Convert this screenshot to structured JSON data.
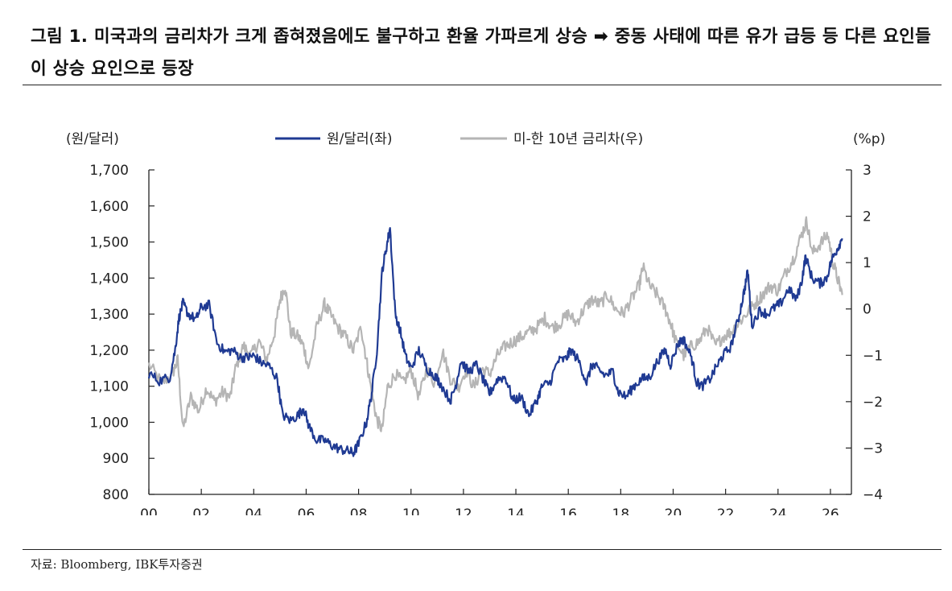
{
  "title": "그림 1.  미국과의 금리차가 크게 좁혀졌음에도 불구하고 환율 가파르게 상승 ➡ 중동 사태에 따른 유가 급등 등 다른 요인들이 상승 요인으로 등장",
  "source": "자료: Bloomberg, IBK투자증권",
  "colors": {
    "krw_usd": "#1f3a93",
    "spread": "#b5b5b5",
    "axis": "#222222"
  },
  "chart_data": {
    "type": "line",
    "left_unit": "(원/달러)",
    "right_unit": "(%p)",
    "x_ticks": [
      "00",
      "02",
      "04",
      "06",
      "08",
      "10",
      "12",
      "14",
      "16",
      "18",
      "20",
      "22",
      "24",
      "26"
    ],
    "x_range": [
      2000,
      2026.8
    ],
    "left_axis": {
      "range": [
        800,
        1700
      ],
      "ticks": [
        "800",
        "900",
        "1,000",
        "1,100",
        "1,200",
        "1,300",
        "1,400",
        "1,500",
        "1,600",
        "1,700"
      ]
    },
    "right_axis": {
      "range": [
        -4,
        3
      ],
      "ticks": [
        "-4",
        "-3",
        "-2",
        "-1",
        "0",
        "1",
        "2",
        "3"
      ]
    },
    "series": [
      {
        "name": "원/달러(좌)",
        "axis": "left",
        "points": [
          [
            2000.0,
            1135
          ],
          [
            2000.4,
            1115
          ],
          [
            2000.8,
            1125
          ],
          [
            2001.0,
            1200
          ],
          [
            2001.15,
            1290
          ],
          [
            2001.3,
            1330
          ],
          [
            2001.5,
            1300
          ],
          [
            2001.8,
            1285
          ],
          [
            2002.0,
            1320
          ],
          [
            2002.3,
            1325
          ],
          [
            2002.6,
            1220
          ],
          [
            2002.9,
            1195
          ],
          [
            2003.2,
            1200
          ],
          [
            2003.5,
            1180
          ],
          [
            2003.8,
            1180
          ],
          [
            2004.0,
            1185
          ],
          [
            2004.3,
            1165
          ],
          [
            2004.6,
            1155
          ],
          [
            2004.9,
            1120
          ],
          [
            2005.1,
            1020
          ],
          [
            2005.4,
            1005
          ],
          [
            2005.7,
            1020
          ],
          [
            2005.9,
            1040
          ],
          [
            2006.1,
            990
          ],
          [
            2006.4,
            950
          ],
          [
            2006.7,
            950
          ],
          [
            2007.0,
            935
          ],
          [
            2007.3,
            925
          ],
          [
            2007.6,
            920
          ],
          [
            2007.8,
            915
          ],
          [
            2008.0,
            940
          ],
          [
            2008.3,
            1000
          ],
          [
            2008.5,
            1080
          ],
          [
            2008.7,
            1200
          ],
          [
            2008.9,
            1420
          ],
          [
            2009.05,
            1480
          ],
          [
            2009.2,
            1540
          ],
          [
            2009.4,
            1300
          ],
          [
            2009.6,
            1250
          ],
          [
            2009.8,
            1180
          ],
          [
            2010.0,
            1150
          ],
          [
            2010.3,
            1200
          ],
          [
            2010.6,
            1150
          ],
          [
            2010.9,
            1130
          ],
          [
            2011.1,
            1110
          ],
          [
            2011.5,
            1060
          ],
          [
            2011.7,
            1100
          ],
          [
            2011.9,
            1170
          ],
          [
            2012.2,
            1140
          ],
          [
            2012.5,
            1160
          ],
          [
            2012.8,
            1110
          ],
          [
            2013.0,
            1080
          ],
          [
            2013.3,
            1120
          ],
          [
            2013.6,
            1125
          ],
          [
            2013.9,
            1060
          ],
          [
            2014.2,
            1070
          ],
          [
            2014.5,
            1020
          ],
          [
            2014.8,
            1060
          ],
          [
            2015.0,
            1100
          ],
          [
            2015.3,
            1110
          ],
          [
            2015.6,
            1170
          ],
          [
            2015.9,
            1175
          ],
          [
            2016.1,
            1200
          ],
          [
            2016.4,
            1170
          ],
          [
            2016.7,
            1110
          ],
          [
            2016.9,
            1160
          ],
          [
            2017.1,
            1150
          ],
          [
            2017.4,
            1130
          ],
          [
            2017.7,
            1140
          ],
          [
            2017.9,
            1085
          ],
          [
            2018.2,
            1070
          ],
          [
            2018.5,
            1100
          ],
          [
            2018.8,
            1120
          ],
          [
            2019.1,
            1125
          ],
          [
            2019.4,
            1170
          ],
          [
            2019.7,
            1200
          ],
          [
            2019.9,
            1160
          ],
          [
            2020.2,
            1220
          ],
          [
            2020.4,
            1230
          ],
          [
            2020.7,
            1180
          ],
          [
            2020.9,
            1110
          ],
          [
            2021.1,
            1100
          ],
          [
            2021.4,
            1120
          ],
          [
            2021.7,
            1160
          ],
          [
            2021.9,
            1185
          ],
          [
            2022.2,
            1210
          ],
          [
            2022.5,
            1290
          ],
          [
            2022.7,
            1360
          ],
          [
            2022.85,
            1420
          ],
          [
            2023.0,
            1270
          ],
          [
            2023.3,
            1310
          ],
          [
            2023.6,
            1300
          ],
          [
            2023.9,
            1320
          ],
          [
            2024.1,
            1330
          ],
          [
            2024.4,
            1370
          ],
          [
            2024.7,
            1340
          ],
          [
            2024.9,
            1390
          ],
          [
            2025.05,
            1460
          ],
          [
            2025.3,
            1400
          ],
          [
            2025.6,
            1385
          ],
          [
            2025.85,
            1400
          ],
          [
            2026.05,
            1450
          ],
          [
            2026.25,
            1480
          ],
          [
            2026.45,
            1510
          ]
        ]
      },
      {
        "name": "미-한 10년 금리차(우)",
        "axis": "right",
        "points": [
          [
            2000.0,
            -1.2
          ],
          [
            2000.5,
            -1.6
          ],
          [
            2000.9,
            -1.4
          ],
          [
            2001.1,
            -1.1
          ],
          [
            2001.3,
            -2.6
          ],
          [
            2001.6,
            -1.9
          ],
          [
            2001.9,
            -2.2
          ],
          [
            2002.2,
            -1.7
          ],
          [
            2002.5,
            -2.0
          ],
          [
            2002.8,
            -1.8
          ],
          [
            2003.1,
            -1.9
          ],
          [
            2003.3,
            -1.3
          ],
          [
            2003.6,
            -0.8
          ],
          [
            2003.9,
            -1.0
          ],
          [
            2004.2,
            -0.7
          ],
          [
            2004.5,
            -1.1
          ],
          [
            2004.8,
            -0.5
          ],
          [
            2005.0,
            0.2
          ],
          [
            2005.2,
            0.5
          ],
          [
            2005.4,
            -0.5
          ],
          [
            2005.7,
            -0.6
          ],
          [
            2005.9,
            -0.8
          ],
          [
            2006.1,
            -1.3
          ],
          [
            2006.4,
            -0.4
          ],
          [
            2006.7,
            0.1
          ],
          [
            2006.9,
            -0.1
          ],
          [
            2007.2,
            -0.4
          ],
          [
            2007.5,
            -0.6
          ],
          [
            2007.8,
            -0.9
          ],
          [
            2008.1,
            -0.4
          ],
          [
            2008.3,
            -1.1
          ],
          [
            2008.5,
            -1.8
          ],
          [
            2008.7,
            -2.4
          ],
          [
            2008.9,
            -2.6
          ],
          [
            2009.1,
            -1.7
          ],
          [
            2009.4,
            -1.4
          ],
          [
            2009.7,
            -1.6
          ],
          [
            2010.0,
            -1.3
          ],
          [
            2010.3,
            -1.9
          ],
          [
            2010.6,
            -1.3
          ],
          [
            2010.9,
            -1.6
          ],
          [
            2011.2,
            -0.9
          ],
          [
            2011.5,
            -1.5
          ],
          [
            2011.8,
            -1.7
          ],
          [
            2012.1,
            -1.3
          ],
          [
            2012.4,
            -1.7
          ],
          [
            2012.7,
            -1.3
          ],
          [
            2013.0,
            -1.4
          ],
          [
            2013.3,
            -1.0
          ],
          [
            2013.6,
            -0.8
          ],
          [
            2013.9,
            -0.7
          ],
          [
            2014.2,
            -0.6
          ],
          [
            2014.5,
            -0.5
          ],
          [
            2014.8,
            -0.4
          ],
          [
            2015.1,
            -0.2
          ],
          [
            2015.4,
            -0.4
          ],
          [
            2015.7,
            -0.3
          ],
          [
            2016.0,
            -0.1
          ],
          [
            2016.3,
            -0.3
          ],
          [
            2016.6,
            0.0
          ],
          [
            2016.9,
            0.2
          ],
          [
            2017.2,
            0.1
          ],
          [
            2017.5,
            0.3
          ],
          [
            2017.8,
            0.0
          ],
          [
            2018.1,
            -0.1
          ],
          [
            2018.4,
            0.2
          ],
          [
            2018.7,
            0.5
          ],
          [
            2018.85,
            0.9
          ],
          [
            2019.1,
            0.5
          ],
          [
            2019.4,
            0.3
          ],
          [
            2019.7,
            0.0
          ],
          [
            2019.9,
            -0.3
          ],
          [
            2020.1,
            -0.7
          ],
          [
            2020.4,
            -1.0
          ],
          [
            2020.7,
            -0.8
          ],
          [
            2021.0,
            -0.7
          ],
          [
            2021.3,
            -0.4
          ],
          [
            2021.6,
            -0.8
          ],
          [
            2021.9,
            -0.6
          ],
          [
            2022.2,
            -0.5
          ],
          [
            2022.5,
            -0.3
          ],
          [
            2022.8,
            -0.1
          ],
          [
            2023.1,
            0.1
          ],
          [
            2023.4,
            0.3
          ],
          [
            2023.7,
            0.5
          ],
          [
            2024.0,
            0.4
          ],
          [
            2024.3,
            0.8
          ],
          [
            2024.6,
            1.1
          ],
          [
            2024.9,
            1.6
          ],
          [
            2025.1,
            1.9
          ],
          [
            2025.3,
            1.2
          ],
          [
            2025.6,
            1.4
          ],
          [
            2025.9,
            1.6
          ],
          [
            2026.1,
            1.0
          ],
          [
            2026.3,
            0.6
          ],
          [
            2026.45,
            0.3
          ]
        ]
      }
    ]
  }
}
